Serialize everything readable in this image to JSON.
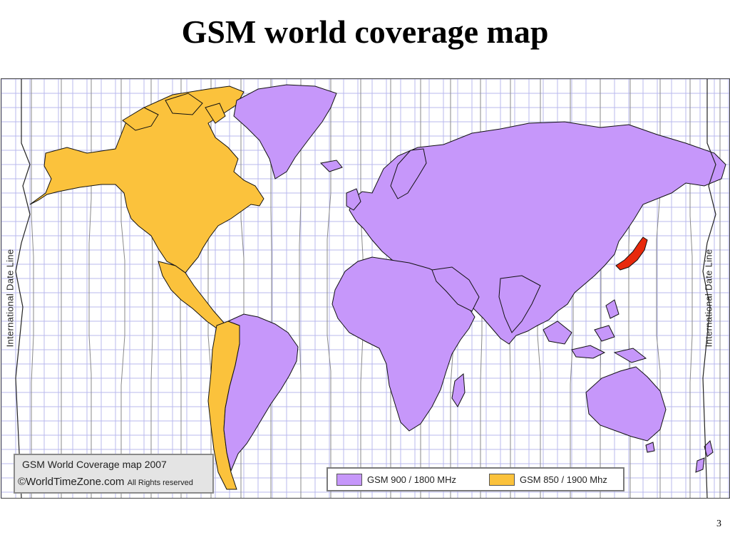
{
  "slide": {
    "title": "GSM world coverage map",
    "page_number": "3"
  },
  "map": {
    "date_line_label_left": "International Date Line",
    "date_line_label_right": "International Date Line",
    "credit": {
      "title": "GSM World Coverage map 2007",
      "copyright_symbol": "©",
      "site": "WorldTimeZone.com",
      "rights": "All Rights reserved"
    },
    "legend": [
      {
        "label": "GSM 900 / 1800 MHz",
        "color": "#c697fa"
      },
      {
        "label": "GSM 850 / 1900 Mhz",
        "color": "#fbc23c"
      }
    ],
    "special_region_color": "#e8290c",
    "colors": {
      "grid_line": "#b9b9ee",
      "zone_line": "#8a8a8a",
      "border": "#111111"
    }
  }
}
